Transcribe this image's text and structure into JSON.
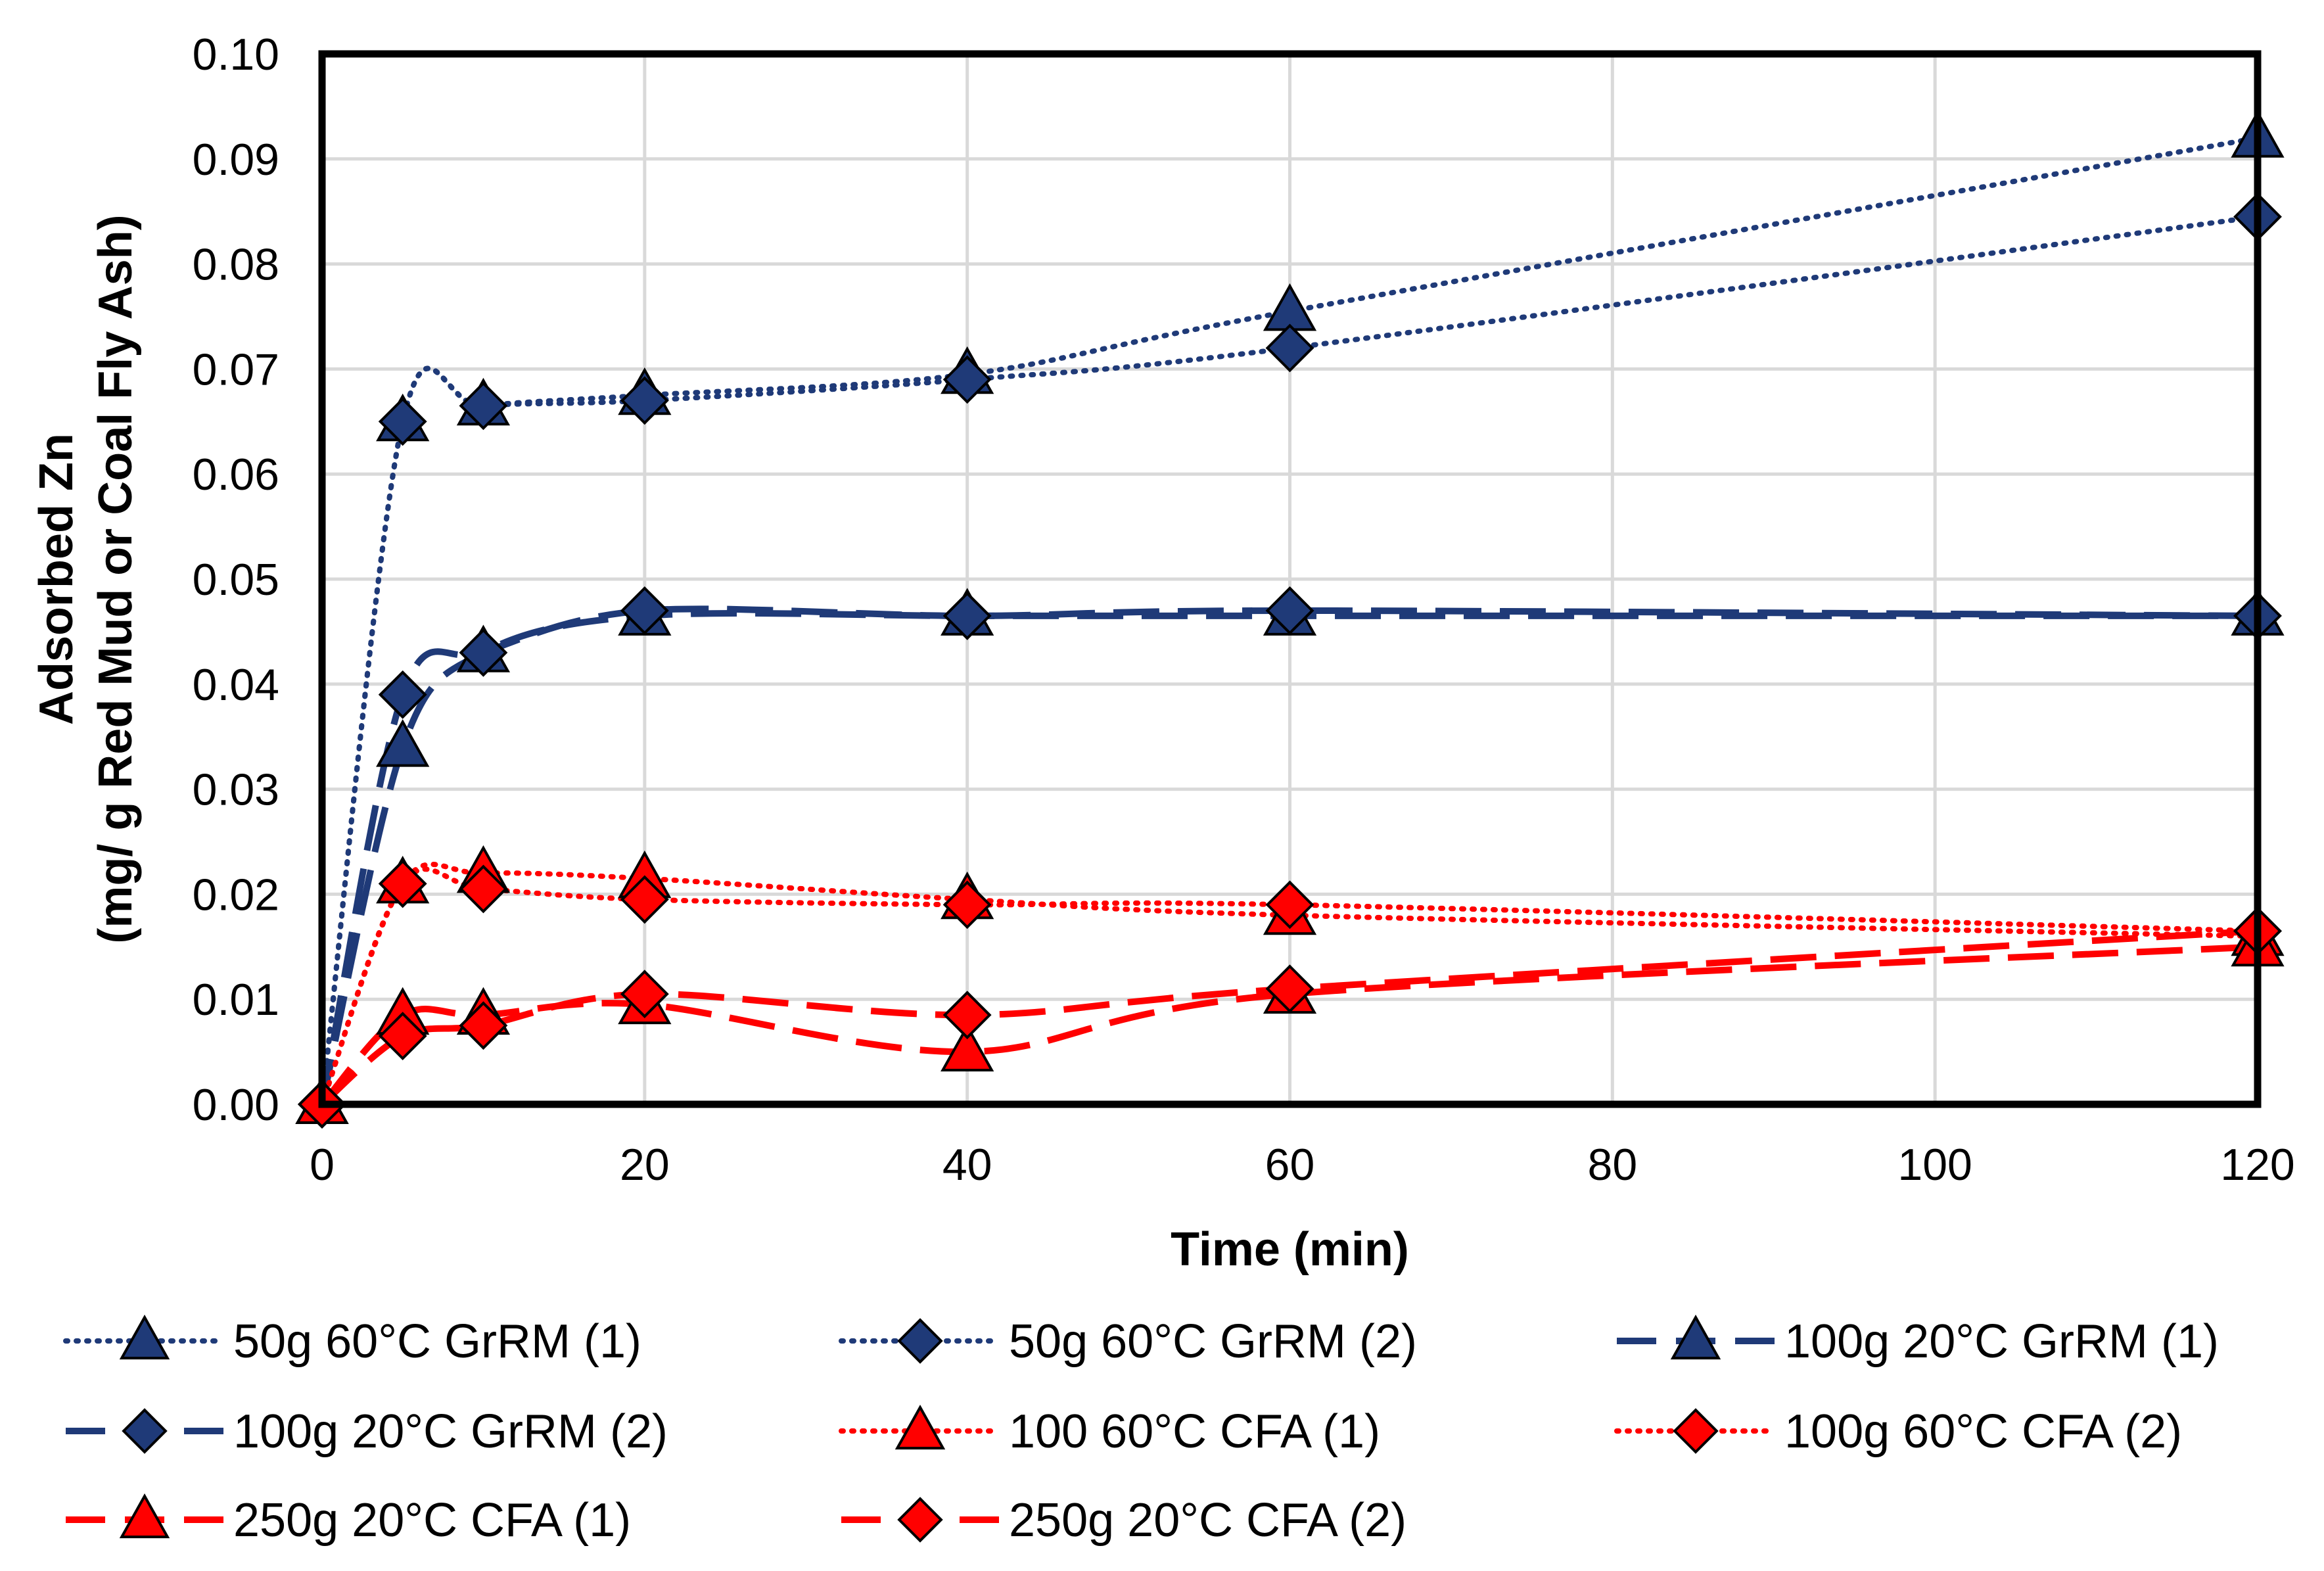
{
  "chart_data": {
    "type": "line",
    "title": "",
    "xlabel": "Time (min)",
    "ylabel_lines": [
      "Adsorbed Zn",
      "(mg/ g Red Mud or Coal Fly Ash)"
    ],
    "xlim": [
      0,
      120
    ],
    "ylim": [
      0,
      0.1
    ],
    "xticks": [
      0,
      20,
      40,
      60,
      80,
      100,
      120
    ],
    "yticks": [
      0,
      0.01,
      0.02,
      0.03,
      0.04,
      0.05,
      0.06,
      0.07,
      0.08,
      0.09,
      0.1
    ],
    "xtick_labels": [
      "0",
      "20",
      "40",
      "60",
      "80",
      "100",
      "120"
    ],
    "ytick_labels": [
      "0.00",
      "0.01",
      "0.02",
      "0.03",
      "0.04",
      "0.05",
      "0.06",
      "0.07",
      "0.08",
      "0.09",
      "0.10"
    ],
    "grid": true,
    "legend_position": "bottom",
    "x": [
      0,
      5,
      10,
      20,
      40,
      60,
      120
    ],
    "series": [
      {
        "name": "50g 60°C GrRM (1)",
        "values": [
          0,
          0.065,
          0.0665,
          0.0675,
          0.0695,
          0.0755,
          0.092
        ],
        "color": "#1F3A78",
        "dash": "dotted",
        "marker": "triangle"
      },
      {
        "name": "50g 60°C GrRM (2)",
        "values": [
          0,
          0.065,
          0.0665,
          0.067,
          0.069,
          0.072,
          0.0845
        ],
        "color": "#1F3A78",
        "dash": "dotted",
        "marker": "diamond"
      },
      {
        "name": "100g 20°C GrRM (1)",
        "values": [
          0,
          0.034,
          0.043,
          0.0465,
          0.0465,
          0.0465,
          0.0465
        ],
        "color": "#1F3A78",
        "dash": "longdash",
        "marker": "triangle"
      },
      {
        "name": "100g 20°C GrRM (2)",
        "values": [
          0,
          0.039,
          0.043,
          0.047,
          0.0465,
          0.047,
          0.0465
        ],
        "color": "#1F3A78",
        "dash": "longdash",
        "marker": "diamond"
      },
      {
        "name": "100 60°C CFA (1)",
        "values": [
          0,
          0.021,
          0.022,
          0.0215,
          0.0195,
          0.018,
          0.016
        ],
        "color": "#FF0000",
        "dash": "dotted",
        "marker": "triangle"
      },
      {
        "name": "100g 60°C CFA (2)",
        "values": [
          0,
          0.021,
          0.0205,
          0.0195,
          0.019,
          0.019,
          0.0165
        ],
        "color": "#FF0000",
        "dash": "dotted",
        "marker": "diamond"
      },
      {
        "name": "250g 20°C CFA (1)",
        "values": [
          0,
          0.0085,
          0.0085,
          0.0095,
          0.005,
          0.0105,
          0.015
        ],
        "color": "#FF0000",
        "dash": "longdash",
        "marker": "triangle"
      },
      {
        "name": "250g 20°C CFA (2)",
        "values": [
          0,
          0.0065,
          0.0075,
          0.0105,
          0.0085,
          0.011,
          0.0165
        ],
        "color": "#FF0000",
        "dash": "longdash",
        "marker": "diamond"
      }
    ]
  }
}
